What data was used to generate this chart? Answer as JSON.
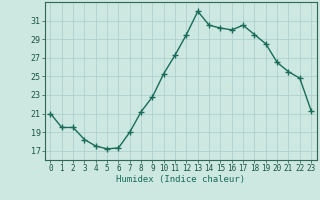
{
  "x": [
    0,
    1,
    2,
    3,
    4,
    5,
    6,
    7,
    8,
    9,
    10,
    11,
    12,
    13,
    14,
    15,
    16,
    17,
    18,
    19,
    20,
    21,
    22,
    23
  ],
  "y": [
    21.0,
    19.5,
    19.5,
    18.2,
    17.5,
    17.2,
    17.3,
    19.0,
    21.2,
    22.8,
    25.3,
    27.3,
    29.5,
    32.0,
    30.5,
    30.2,
    30.0,
    30.5,
    29.5,
    28.5,
    26.5,
    25.5,
    24.8,
    21.3
  ],
  "title": "",
  "xlabel": "Humidex (Indice chaleur)",
  "xlim": [
    -0.5,
    23.5
  ],
  "ylim": [
    16.0,
    33.0
  ],
  "yticks": [
    17,
    19,
    21,
    23,
    25,
    27,
    29,
    31
  ],
  "xticks": [
    0,
    1,
    2,
    3,
    4,
    5,
    6,
    7,
    8,
    9,
    10,
    11,
    12,
    13,
    14,
    15,
    16,
    17,
    18,
    19,
    20,
    21,
    22,
    23
  ],
  "line_color": "#1a6b5a",
  "marker": "+",
  "bg_color": "#cce8e0",
  "grid_color": "#aacccc",
  "axis_color": "#336655",
  "label_color": "#1a6b5a",
  "tick_color": "#1a5544",
  "tick_fontsize": 5.5,
  "xlabel_fontsize": 6.5,
  "linewidth": 1.0,
  "markersize": 4,
  "markeredgewidth": 1.0
}
